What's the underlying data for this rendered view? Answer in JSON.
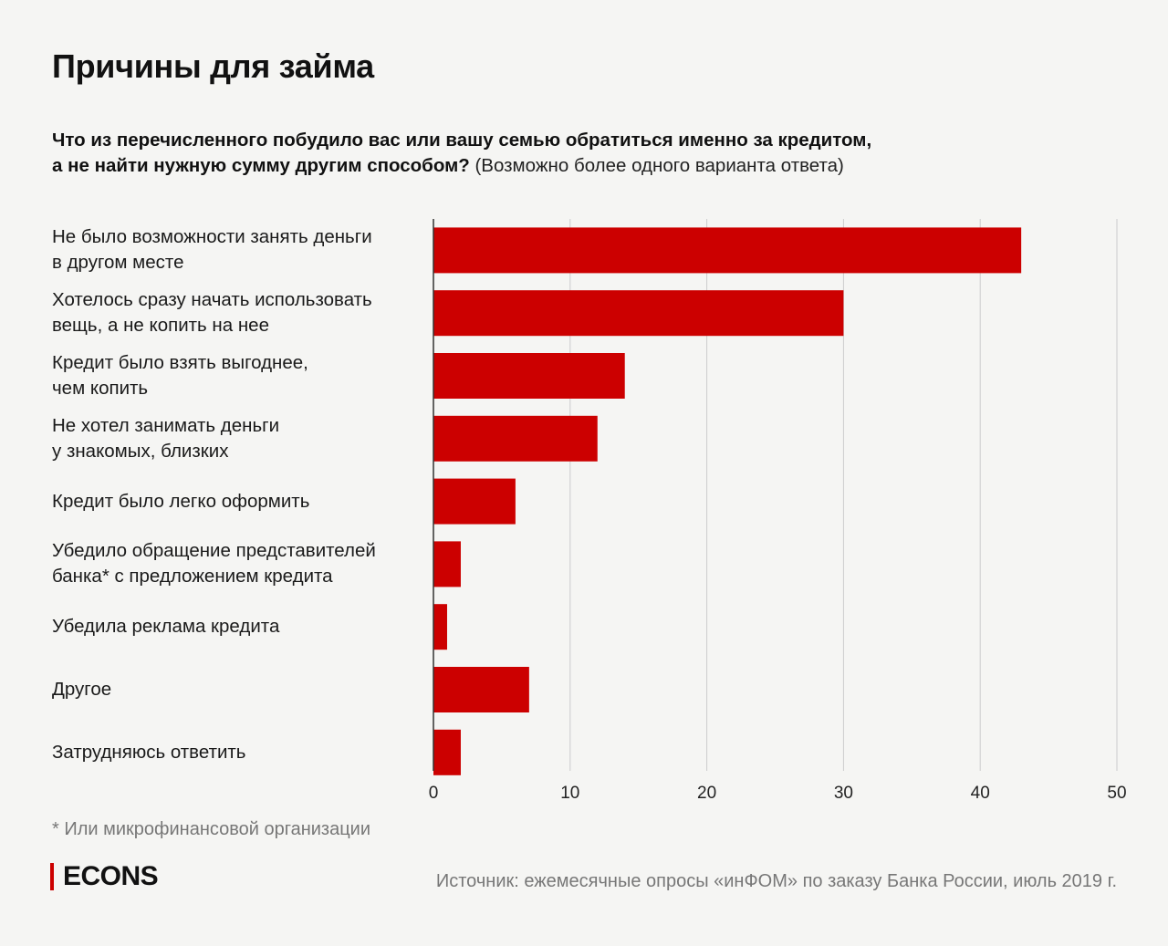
{
  "title": "Причины для займа",
  "question_bold_line1": "Что из перечисленного побудило вас или вашу семью обратиться именно за кредитом,",
  "question_bold_line2": "а не найти нужную сумму другим способом?",
  "question_note": "(Возможно более одного варианта ответа)",
  "footnote": "* Или микрофинансовой организации",
  "logo": "ECONS",
  "source": "Источник: ежемесячные опросы «инФОМ» по заказу Банка России, июль 2019 г.",
  "colors": {
    "bar": "#cc0000",
    "background": "#f5f5f3",
    "grid": "#cccccc",
    "axis": "#333333",
    "muted_text": "#777777"
  },
  "chart_data": {
    "type": "bar",
    "orientation": "horizontal",
    "categories": [
      "Не было возможности занять деньги\nв другом месте",
      "Хотелось сразу начать использовать\nвещь, а не копить на нее",
      "Кредит было взять выгоднее,\nчем копить",
      "Не хотел занимать деньги\nу знакомых, близких",
      "Кредит было легко оформить",
      "Убедило обращение представителей\nбанка* с предложением кредита",
      "Убедила реклама кредита",
      "Другое",
      "Затрудняюсь ответить"
    ],
    "values": [
      43,
      30,
      14,
      12,
      6,
      2,
      1,
      7,
      2
    ],
    "xlim": [
      0,
      50
    ],
    "xticks": [
      0,
      10,
      20,
      30,
      40,
      50
    ],
    "xtick_labels": [
      "0",
      "10",
      "20",
      "30",
      "40",
      "50"
    ],
    "grid": true,
    "legend": false
  }
}
